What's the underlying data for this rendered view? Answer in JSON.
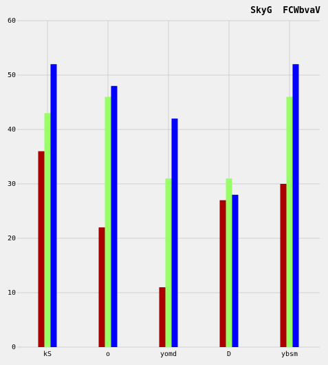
{
  "chart_data": {
    "type": "bar",
    "title": "SkyG  FCWbvaV",
    "xlabel": "",
    "ylabel": "",
    "categories": [
      "kS",
      "o",
      "yomd",
      "D",
      "ybsm"
    ],
    "series": [
      {
        "values": [
          36,
          22,
          11,
          27,
          30
        ],
        "color": "#aa0000"
      },
      {
        "values": [
          43,
          46,
          31,
          31,
          46
        ],
        "color": "#99ff66"
      },
      {
        "values": [
          52,
          48,
          42,
          28,
          52
        ],
        "color": "#0000ff"
      }
    ],
    "ylim": [
      0,
      60
    ],
    "yticks": [
      0,
      10,
      20,
      30,
      40,
      50,
      60
    ],
    "grid": true,
    "legend": "none"
  }
}
